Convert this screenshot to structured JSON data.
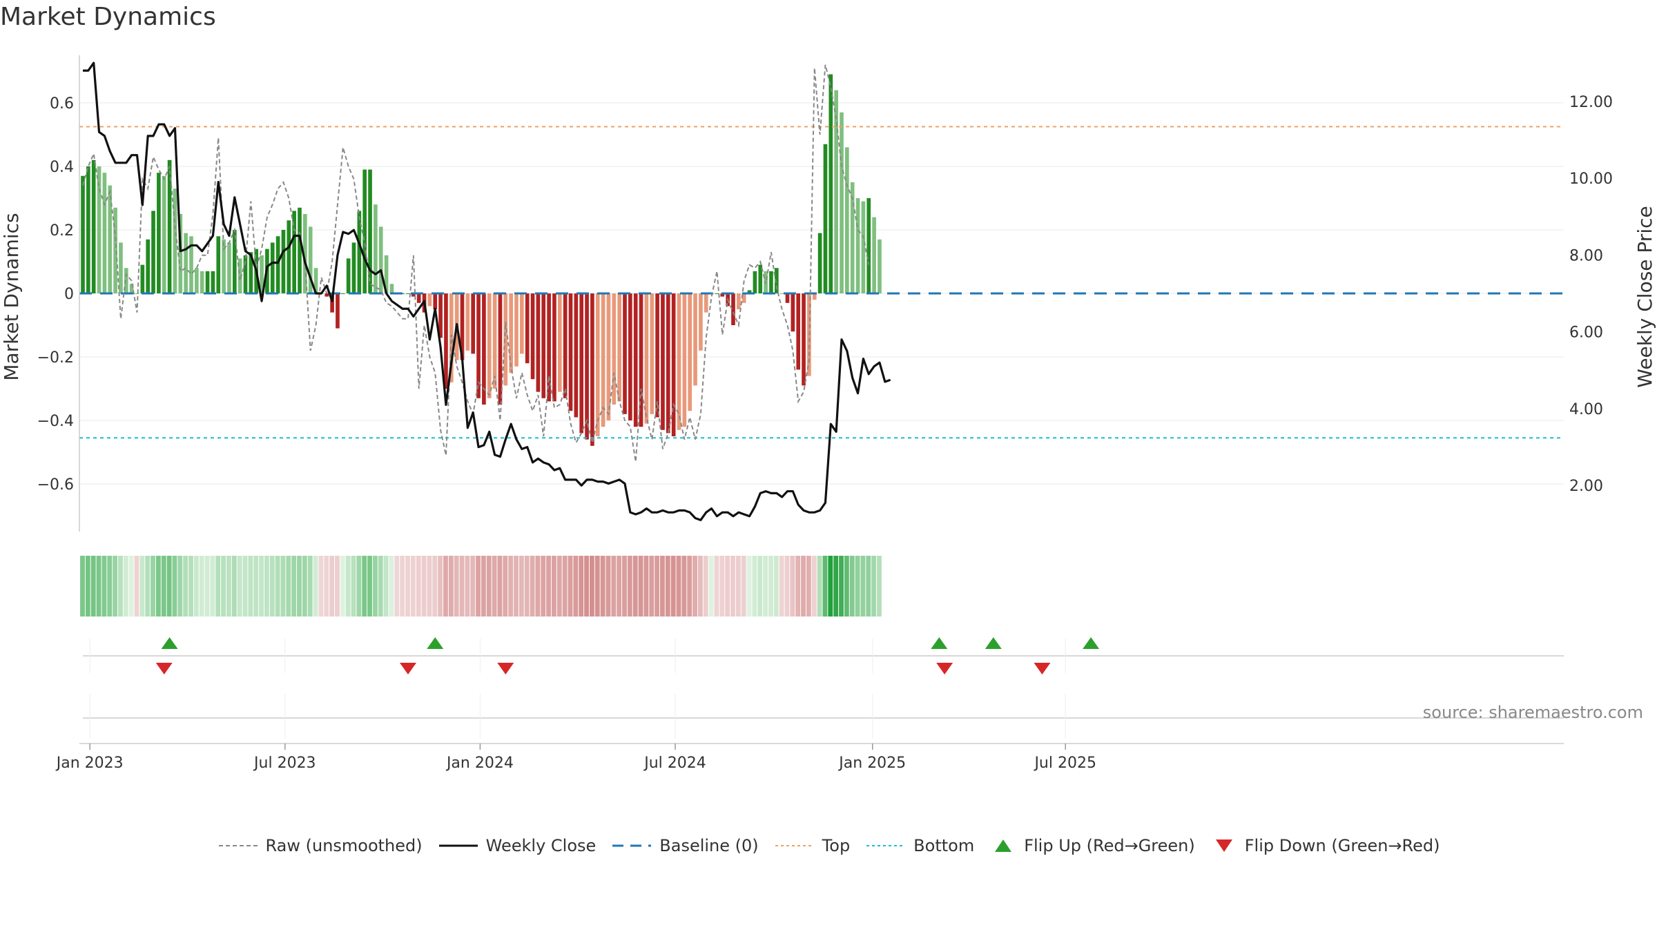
{
  "title": "Market Dynamics",
  "source": "source: sharemaestro.com",
  "colors": {
    "strong_green": "#228b22",
    "light_green": "#7fbf7f",
    "strong_red": "#b22222",
    "light_red": "#e8997a",
    "raw": "#888888",
    "close": "#111111",
    "baseline": "#1f77b4",
    "top": "#f0a060",
    "bottom": "#17becf",
    "flip_up": "#2ca02c",
    "flip_down": "#d62728"
  },
  "chart_data": {
    "type": "bar",
    "ylabel_left": "Market Dynamics",
    "ylabel_right": "Weekly Close Price",
    "ylim_left": [
      -0.75,
      0.75
    ],
    "ylim_right": [
      0.8,
      13.2
    ],
    "left_ticks": [
      "0.6",
      "0.4",
      "0.2",
      "0",
      "−0.2",
      "−0.4",
      "−0.6"
    ],
    "left_tick_values": [
      0.6,
      0.4,
      0.2,
      0,
      -0.2,
      -0.4,
      -0.6
    ],
    "right_ticks": [
      "12.00",
      "10.00",
      "8.00",
      "6.00",
      "4.00",
      "2.00"
    ],
    "right_tick_values": [
      12,
      10,
      8,
      6,
      4,
      2
    ],
    "x_ticks": [
      "Jan 2023",
      "Jul 2023",
      "Jan 2024",
      "Jul 2024",
      "Jan 2025",
      "Jul 2025"
    ],
    "x_tick_weeks": [
      1.3,
      37.3,
      73.3,
      109.3,
      145.7,
      181.3
    ],
    "top_line": 0.525,
    "bottom_line": -0.455,
    "baseline": 0,
    "series": [
      {
        "name": "Market Dynamics (smoothed)",
        "values": [
          0.37,
          0.4,
          0.42,
          0.4,
          0.38,
          0.34,
          0.27,
          0.16,
          0.08,
          0.03,
          0.0,
          0.09,
          0.17,
          0.26,
          0.38,
          0.37,
          0.42,
          0.33,
          0.25,
          0.19,
          0.18,
          0.08,
          0.07,
          0.07,
          0.07,
          0.18,
          0.17,
          0.16,
          0.2,
          0.11,
          0.12,
          0.13,
          0.14,
          0.12,
          0.14,
          0.16,
          0.18,
          0.2,
          0.23,
          0.26,
          0.27,
          0.25,
          0.21,
          0.08,
          0.0,
          -0.01,
          -0.06,
          -0.11,
          0.0,
          0.11,
          0.16,
          0.26,
          0.39,
          0.39,
          0.28,
          0.21,
          0.12,
          0.03,
          0.0,
          0.0,
          0.0,
          -0.01,
          -0.03,
          -0.06,
          -0.04,
          -0.05,
          -0.14,
          -0.3,
          -0.28,
          -0.21,
          -0.21,
          -0.18,
          -0.19,
          -0.33,
          -0.35,
          -0.33,
          -0.3,
          -0.35,
          -0.29,
          -0.25,
          -0.23,
          -0.19,
          -0.22,
          -0.27,
          -0.31,
          -0.33,
          -0.34,
          -0.34,
          -0.31,
          -0.33,
          -0.37,
          -0.39,
          -0.44,
          -0.46,
          -0.48,
          -0.45,
          -0.42,
          -0.4,
          -0.35,
          -0.34,
          -0.38,
          -0.4,
          -0.42,
          -0.42,
          -0.41,
          -0.38,
          -0.39,
          -0.43,
          -0.44,
          -0.45,
          -0.43,
          -0.42,
          -0.37,
          -0.29,
          -0.18,
          -0.06,
          0.0,
          0.0,
          -0.01,
          -0.04,
          -0.1,
          -0.05,
          -0.03,
          0.01,
          0.07,
          0.09,
          0.07,
          0.07,
          0.08,
          0.0,
          -0.03,
          -0.12,
          -0.24,
          -0.29,
          -0.26,
          -0.02,
          0.19,
          0.47,
          0.69,
          0.64,
          0.57,
          0.46,
          0.35,
          0.3,
          0.29,
          0.3,
          0.24,
          0.17
        ]
      },
      {
        "name": "Raw (unsmoothed)",
        "values": [
          0.34,
          0.4,
          0.44,
          0.33,
          0.28,
          0.32,
          0.18,
          -0.08,
          0.06,
          0.04,
          -0.06,
          0.36,
          0.33,
          0.43,
          0.39,
          0.36,
          0.4,
          0.21,
          0.07,
          0.08,
          0.06,
          0.08,
          0.12,
          0.12,
          0.25,
          0.49,
          0.14,
          0.16,
          0.2,
          0.04,
          0.1,
          0.29,
          0.08,
          0.14,
          0.24,
          0.28,
          0.33,
          0.35,
          0.3,
          0.2,
          0.19,
          0.1,
          -0.18,
          -0.1,
          0.05,
          0.0,
          0.1,
          0.28,
          0.46,
          0.4,
          0.36,
          0.24,
          0.16,
          0.03,
          0.02,
          0.01,
          -0.03,
          -0.04,
          -0.06,
          -0.08,
          -0.08,
          0.12,
          -0.3,
          -0.1,
          -0.2,
          -0.25,
          -0.43,
          -0.51,
          -0.13,
          -0.23,
          -0.28,
          -0.34,
          -0.38,
          -0.28,
          -0.3,
          -0.32,
          -0.26,
          -0.4,
          -0.09,
          -0.23,
          -0.33,
          -0.25,
          -0.32,
          -0.37,
          -0.32,
          -0.45,
          -0.26,
          -0.36,
          -0.35,
          -0.3,
          -0.41,
          -0.47,
          -0.44,
          -0.4,
          -0.47,
          -0.4,
          -0.36,
          -0.38,
          -0.25,
          -0.34,
          -0.4,
          -0.42,
          -0.53,
          -0.3,
          -0.39,
          -0.46,
          -0.34,
          -0.49,
          -0.44,
          -0.35,
          -0.38,
          -0.46,
          -0.39,
          -0.46,
          -0.38,
          -0.14,
          -0.01,
          0.07,
          -0.13,
          -0.02,
          -0.06,
          -0.1,
          0.04,
          0.09,
          0.08,
          0.1,
          0.03,
          0.13,
          0.02,
          -0.05,
          -0.1,
          -0.18,
          -0.34,
          -0.31,
          -0.21,
          0.71,
          0.5,
          0.72,
          0.65,
          0.55,
          0.4,
          0.34,
          0.3,
          0.2,
          0.18,
          0.09
        ]
      },
      {
        "name": "Weekly Close",
        "values": [
          12.8,
          12.8,
          13.0,
          11.2,
          11.1,
          10.7,
          10.4,
          10.4,
          10.4,
          10.6,
          10.6,
          9.3,
          11.1,
          11.1,
          11.4,
          11.4,
          11.1,
          11.3,
          8.1,
          8.15,
          8.25,
          8.25,
          8.1,
          8.3,
          8.5,
          9.9,
          8.8,
          8.5,
          9.5,
          8.8,
          8.1,
          8.0,
          7.6,
          6.8,
          7.7,
          7.8,
          7.8,
          8.1,
          8.2,
          8.5,
          8.5,
          7.8,
          7.4,
          7.0,
          7.0,
          7.2,
          6.8,
          8.0,
          8.6,
          8.55,
          8.65,
          8.3,
          7.9,
          7.6,
          7.5,
          7.6,
          7.0,
          6.8,
          6.7,
          6.6,
          6.6,
          6.4,
          6.6,
          6.8,
          5.8,
          6.6,
          5.6,
          4.1,
          5.2,
          6.2,
          5.3,
          3.5,
          3.9,
          3.0,
          3.05,
          3.4,
          2.8,
          2.75,
          3.2,
          3.6,
          3.2,
          2.95,
          3.0,
          2.6,
          2.7,
          2.6,
          2.55,
          2.4,
          2.45,
          2.15,
          2.15,
          2.15,
          2.0,
          2.15,
          2.15,
          2.1,
          2.1,
          2.05,
          2.1,
          2.15,
          2.05,
          1.3,
          1.25,
          1.3,
          1.4,
          1.3,
          1.3,
          1.35,
          1.3,
          1.3,
          1.35,
          1.35,
          1.3,
          1.15,
          1.1,
          1.3,
          1.4,
          1.2,
          1.3,
          1.3,
          1.2,
          1.3,
          1.25,
          1.2,
          1.45,
          1.8,
          1.85,
          1.8,
          1.8,
          1.7,
          1.85,
          1.85,
          1.5,
          1.35,
          1.3,
          1.3,
          1.35,
          1.55,
          3.6,
          3.4,
          5.8,
          5.5,
          4.8,
          4.4,
          5.3,
          4.9,
          5.1,
          5.2,
          4.7,
          4.75
        ]
      }
    ],
    "heat_strip": [
      0.3,
      0.32,
      0.32,
      0.3,
      0.28,
      0.26,
      0.22,
      0.13,
      0.06,
      0.02,
      -0.02,
      0.08,
      0.14,
      0.22,
      0.3,
      0.3,
      0.32,
      0.26,
      0.2,
      0.15,
      0.14,
      0.08,
      0.06,
      0.06,
      0.06,
      0.14,
      0.13,
      0.12,
      0.16,
      0.09,
      0.1,
      0.11,
      0.11,
      0.1,
      0.11,
      0.13,
      0.15,
      0.16,
      0.18,
      0.2,
      0.21,
      0.2,
      0.17,
      0.06,
      -0.01,
      -0.02,
      -0.05,
      -0.04,
      0.02,
      0.09,
      0.13,
      0.2,
      0.3,
      0.3,
      0.22,
      0.17,
      0.1,
      0.03,
      -0.01,
      -0.02,
      -0.03,
      -0.03,
      -0.04,
      -0.05,
      -0.05,
      -0.06,
      -0.12,
      -0.24,
      -0.23,
      -0.17,
      -0.17,
      -0.15,
      -0.16,
      -0.27,
      -0.28,
      -0.27,
      -0.24,
      -0.28,
      -0.24,
      -0.2,
      -0.19,
      -0.16,
      -0.18,
      -0.22,
      -0.25,
      -0.27,
      -0.28,
      -0.28,
      -0.25,
      -0.27,
      -0.3,
      -0.32,
      -0.35,
      -0.37,
      -0.38,
      -0.36,
      -0.34,
      -0.32,
      -0.28,
      -0.27,
      -0.3,
      -0.32,
      -0.34,
      -0.34,
      -0.33,
      -0.3,
      -0.31,
      -0.34,
      -0.35,
      -0.36,
      -0.34,
      -0.33,
      -0.3,
      -0.23,
      -0.14,
      -0.05,
      0.02,
      -0.02,
      -0.03,
      -0.05,
      -0.06,
      -0.05,
      -0.04,
      0.02,
      0.06,
      0.08,
      0.06,
      0.06,
      0.07,
      -0.02,
      -0.04,
      -0.1,
      -0.19,
      -0.23,
      -0.21,
      -0.03,
      0.15,
      0.38,
      0.55,
      0.51,
      0.46,
      0.37,
      0.28,
      0.24,
      0.23,
      0.24,
      0.19,
      0.14
    ],
    "flip_up_weeks": [
      16,
      65,
      158,
      168,
      186
    ],
    "flip_down_weeks": [
      15,
      60,
      78,
      159,
      177
    ],
    "legend": [
      "Raw (unsmoothed)",
      "Weekly Close",
      "Baseline (0)",
      "Top",
      "Bottom",
      "Flip Up (Red→Green)",
      "Flip Down (Green→Red)"
    ]
  }
}
